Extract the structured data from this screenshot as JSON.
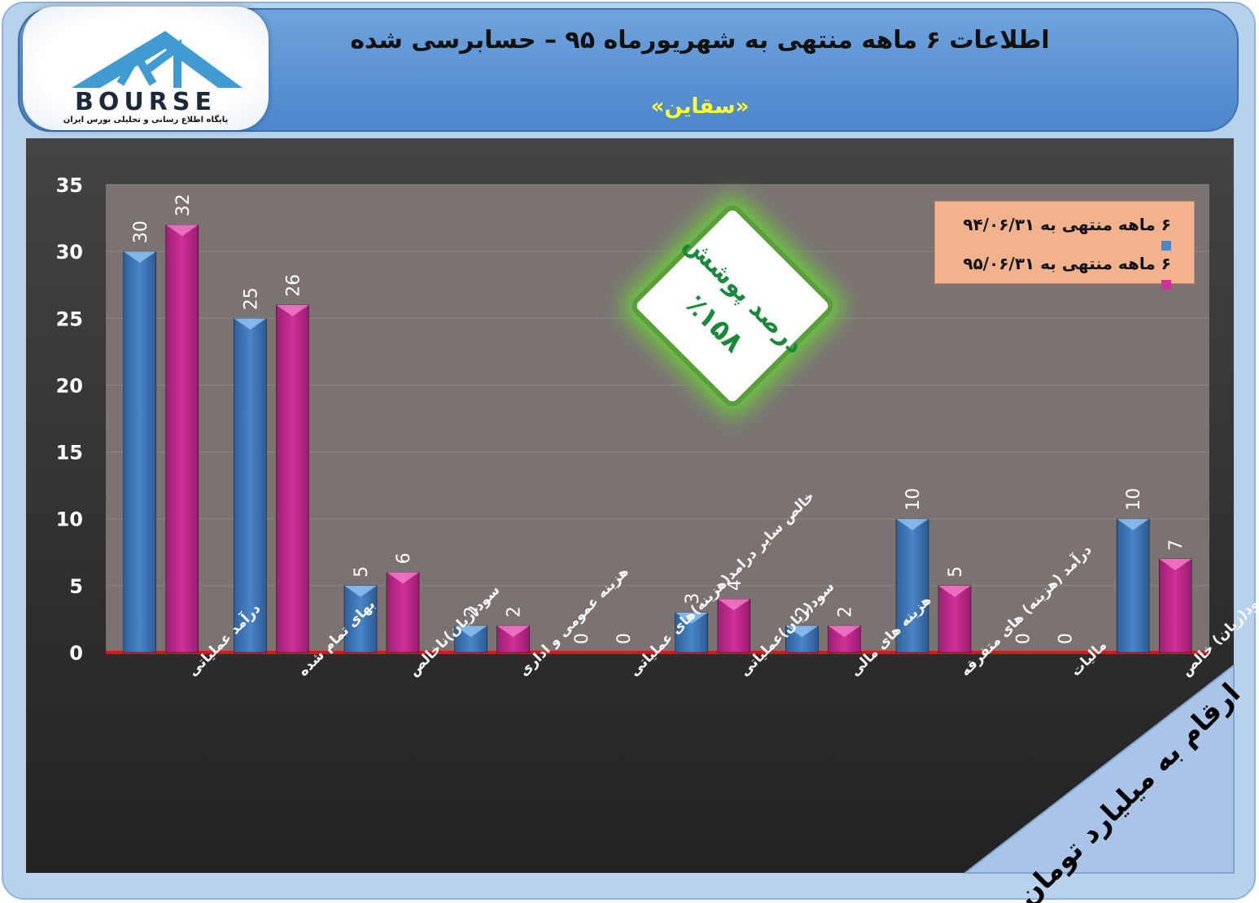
{
  "header": {
    "title": "اطلاعات ۶ ماهه منتهی به شهریورماه ۹۵ – حسابرسی شده",
    "company": "«سقاین»",
    "logo": {
      "word": "BOURSE",
      "tagline": "پایگاه اطلاع رسانی و تحلیلی بورس ایران"
    }
  },
  "coverage_badge": {
    "label": "درصد پوشش",
    "value": "٪۱۵۸",
    "color": "#1a8a3a"
  },
  "unit_label": "ارقام به میلیارد تومان",
  "colors": {
    "series_1": "#4a86c8",
    "series_2": "#d0309a",
    "baseline": "#d41a1a",
    "plot_bg": "#7a7372"
  },
  "chart_data": {
    "type": "bar",
    "categories": [
      "درآمد عملیاتی",
      "بهای تمام شده",
      "سود(زیان)ناخالص",
      "هزینه عمومی و اداری",
      "خالص سایر درامد(هزینه)های عملیاتی",
      "سود(زیان)عملیاتی",
      "هزینه های مالی",
      "درآمد (هزینه) های متفرقه",
      "مالیات",
      "سود(زیان) خالص"
    ],
    "series": [
      {
        "name": "۶ ماهه منتهی به ۹۴/۰۶/۳۱",
        "values": [
          30,
          25,
          5,
          2,
          0,
          3,
          2,
          10,
          0,
          10
        ]
      },
      {
        "name": "۶ ماهه منتهی به ۹۵/۰۶/۳۱",
        "values": [
          32,
          26,
          6,
          2,
          0,
          4,
          2,
          5,
          0,
          7
        ]
      }
    ],
    "y_ticks": [
      "0",
      "5",
      "10",
      "15",
      "20",
      "25",
      "30",
      "35"
    ],
    "ylim": [
      0,
      35
    ],
    "legend_position": "top-right",
    "grid": true
  }
}
